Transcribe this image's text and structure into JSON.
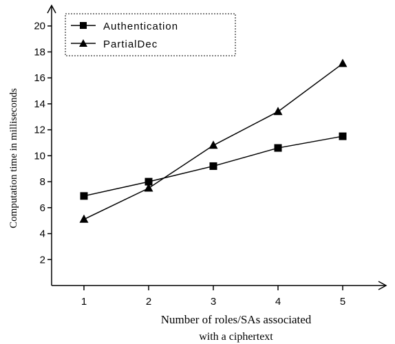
{
  "chart_data": {
    "type": "line",
    "x": [
      1,
      2,
      3,
      4,
      5
    ],
    "xlim": [
      0.5,
      5.5
    ],
    "ylim": [
      0,
      22
    ],
    "yticks": [
      2,
      4,
      6,
      8,
      10,
      12,
      14,
      16,
      18,
      20
    ],
    "xlabel_line1": "Number of roles/SAs associated",
    "xlabel_line2": "with a ciphertext",
    "ylabel": "Computation time in milliseconds",
    "grid": false,
    "legend_position": "top-left",
    "series": [
      {
        "name": "Authentication",
        "marker": "square",
        "color": "#000000",
        "values": [
          6.9,
          8.0,
          9.2,
          10.6,
          11.5
        ]
      },
      {
        "name": "PartialDec",
        "marker": "triangle",
        "color": "#000000",
        "values": [
          5.1,
          7.5,
          10.8,
          13.4,
          17.1
        ]
      }
    ]
  }
}
